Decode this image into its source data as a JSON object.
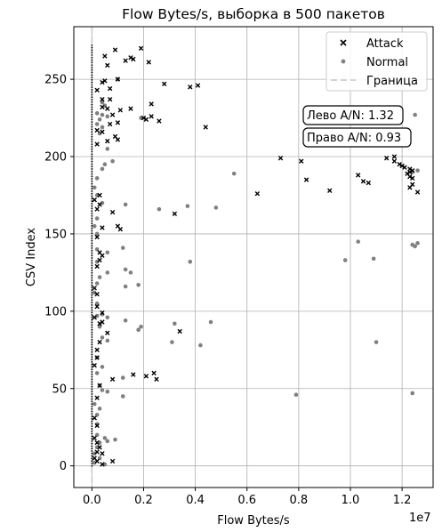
{
  "chart_data": {
    "type": "scatter",
    "title": "Flow Bytes/s, выборка в 500 пакетов",
    "xlabel": "Flow Bytes/s",
    "ylabel": "CSV Index",
    "x_scale_note": "1e7",
    "xlim": [
      -700000,
      13200000
    ],
    "ylim": [
      -14,
      284
    ],
    "xticks": [
      0,
      2000000,
      4000000,
      6000000,
      8000000,
      10000000,
      12000000
    ],
    "xtick_labels": [
      "0.0",
      "0.2",
      "0.4",
      "0.6",
      "0.8",
      "1.0",
      "1.2"
    ],
    "yticks": [
      0,
      50,
      100,
      150,
      200,
      250
    ],
    "ytick_labels": [
      "0",
      "50",
      "100",
      "150",
      "200",
      "250"
    ],
    "grid": true,
    "legend_position": "top-right",
    "boundary_x": 0,
    "annotations": [
      {
        "text": "Лево A/N: 1.32",
        "x": 10600000,
        "y": 227
      },
      {
        "text": "Право A/N: 0.93",
        "x": 10600000,
        "y": 212
      }
    ],
    "series": [
      {
        "name": "Attack",
        "marker": "x",
        "color": "#000000",
        "points": [
          [
            900000,
            269
          ],
          [
            1900000,
            270
          ],
          [
            500000,
            265
          ],
          [
            1500000,
            264
          ],
          [
            1600000,
            263
          ],
          [
            1300000,
            262
          ],
          [
            2200000,
            261
          ],
          [
            600000,
            259
          ],
          [
            1000000,
            250
          ],
          [
            500000,
            249
          ],
          [
            400000,
            248
          ],
          [
            2800000,
            247
          ],
          [
            3800000,
            245
          ],
          [
            4100000,
            246
          ],
          [
            700000,
            244
          ],
          [
            200000,
            243
          ],
          [
            400000,
            237
          ],
          [
            700000,
            237
          ],
          [
            2300000,
            234
          ],
          [
            400000,
            232
          ],
          [
            600000,
            231
          ],
          [
            1500000,
            231
          ],
          [
            1100000,
            230
          ],
          [
            800000,
            227
          ],
          [
            2000000,
            225
          ],
          [
            2100000,
            224
          ],
          [
            2300000,
            226
          ],
          [
            2600000,
            223
          ],
          [
            1000000,
            222
          ],
          [
            700000,
            221
          ],
          [
            4400000,
            219
          ],
          [
            200000,
            217
          ],
          [
            400000,
            216
          ],
          [
            900000,
            213
          ],
          [
            1000000,
            211
          ],
          [
            600000,
            210
          ],
          [
            200000,
            208
          ],
          [
            11700000,
            200
          ],
          [
            11400000,
            199
          ],
          [
            7300000,
            199
          ],
          [
            11700000,
            197
          ],
          [
            8100000,
            197
          ],
          [
            11900000,
            195
          ],
          [
            12000000,
            194
          ],
          [
            12100000,
            193
          ],
          [
            12300000,
            192
          ],
          [
            12400000,
            191
          ],
          [
            12300000,
            190
          ],
          [
            12200000,
            189
          ],
          [
            10300000,
            188
          ],
          [
            12300000,
            187
          ],
          [
            12400000,
            186
          ],
          [
            10500000,
            184
          ],
          [
            10700000,
            183
          ],
          [
            8300000,
            185
          ],
          [
            12400000,
            182
          ],
          [
            12300000,
            180
          ],
          [
            12600000,
            177
          ],
          [
            9200000,
            178
          ],
          [
            6400000,
            176
          ],
          [
            300000,
            175
          ],
          [
            100000,
            172
          ],
          [
            300000,
            169
          ],
          [
            200000,
            166
          ],
          [
            800000,
            164
          ],
          [
            3200000,
            163
          ],
          [
            1000000,
            155
          ],
          [
            1100000,
            153
          ],
          [
            400000,
            154
          ],
          [
            200000,
            148
          ],
          [
            300000,
            138
          ],
          [
            400000,
            136
          ],
          [
            300000,
            133
          ],
          [
            200000,
            129
          ],
          [
            100000,
            115
          ],
          [
            200000,
            111
          ],
          [
            200000,
            103
          ],
          [
            400000,
            99
          ],
          [
            100000,
            96
          ],
          [
            400000,
            93
          ],
          [
            300000,
            92
          ],
          [
            3400000,
            87
          ],
          [
            600000,
            86
          ],
          [
            300000,
            80
          ],
          [
            200000,
            75
          ],
          [
            200000,
            70
          ],
          [
            100000,
            65
          ],
          [
            1600000,
            59
          ],
          [
            2400000,
            60
          ],
          [
            2100000,
            58
          ],
          [
            2500000,
            56
          ],
          [
            800000,
            56
          ],
          [
            300000,
            52
          ],
          [
            200000,
            44
          ],
          [
            100000,
            31
          ],
          [
            200000,
            26
          ],
          [
            100000,
            18
          ],
          [
            200000,
            15
          ],
          [
            300000,
            12
          ],
          [
            200000,
            9
          ],
          [
            400000,
            8
          ],
          [
            100000,
            5
          ],
          [
            200000,
            3
          ],
          [
            800000,
            3
          ],
          [
            400000,
            1
          ]
        ]
      },
      {
        "name": "Normal",
        "marker": "o",
        "color": "#808080",
        "points": [
          [
            1000000,
            250
          ],
          [
            400000,
            235
          ],
          [
            500000,
            233
          ],
          [
            200000,
            228
          ],
          [
            400000,
            227
          ],
          [
            600000,
            226
          ],
          [
            300000,
            224
          ],
          [
            1900000,
            225
          ],
          [
            200000,
            221
          ],
          [
            400000,
            219
          ],
          [
            300000,
            215
          ],
          [
            12500000,
            227
          ],
          [
            600000,
            205
          ],
          [
            800000,
            197
          ],
          [
            500000,
            195
          ],
          [
            400000,
            192
          ],
          [
            12600000,
            191
          ],
          [
            12400000,
            190
          ],
          [
            5500000,
            189
          ],
          [
            200000,
            186
          ],
          [
            100000,
            180
          ],
          [
            200000,
            175
          ],
          [
            400000,
            170
          ],
          [
            1300000,
            169
          ],
          [
            3700000,
            168
          ],
          [
            4800000,
            167
          ],
          [
            2600000,
            166
          ],
          [
            200000,
            160
          ],
          [
            100000,
            155
          ],
          [
            200000,
            150
          ],
          [
            10300000,
            145
          ],
          [
            12600000,
            144
          ],
          [
            12400000,
            143
          ],
          [
            12500000,
            142
          ],
          [
            1200000,
            141
          ],
          [
            600000,
            138
          ],
          [
            200000,
            140
          ],
          [
            10900000,
            134
          ],
          [
            9800000,
            133
          ],
          [
            3800000,
            132
          ],
          [
            200000,
            132
          ],
          [
            1300000,
            127
          ],
          [
            1500000,
            125
          ],
          [
            600000,
            125
          ],
          [
            300000,
            122
          ],
          [
            1800000,
            117
          ],
          [
            1300000,
            116
          ],
          [
            200000,
            118
          ],
          [
            100000,
            112
          ],
          [
            200000,
            105
          ],
          [
            400000,
            98
          ],
          [
            200000,
            97
          ],
          [
            600000,
            96
          ],
          [
            1300000,
            94
          ],
          [
            300000,
            90
          ],
          [
            1900000,
            90
          ],
          [
            3200000,
            92
          ],
          [
            4600000,
            93
          ],
          [
            1800000,
            88
          ],
          [
            400000,
            83
          ],
          [
            600000,
            81
          ],
          [
            3100000,
            80
          ],
          [
            11000000,
            80
          ],
          [
            4200000,
            78
          ],
          [
            200000,
            70
          ],
          [
            400000,
            64
          ],
          [
            200000,
            60
          ],
          [
            1200000,
            57
          ],
          [
            300000,
            52
          ],
          [
            400000,
            49
          ],
          [
            600000,
            48
          ],
          [
            7900000,
            46
          ],
          [
            12400000,
            47
          ],
          [
            1200000,
            45
          ],
          [
            100000,
            40
          ],
          [
            300000,
            37
          ],
          [
            200000,
            33
          ],
          [
            200000,
            27
          ],
          [
            500000,
            18
          ],
          [
            900000,
            17
          ],
          [
            600000,
            16
          ],
          [
            300000,
            15
          ],
          [
            200000,
            12
          ],
          [
            100000,
            8
          ],
          [
            300000,
            5
          ],
          [
            100000,
            2
          ],
          [
            500000,
            1
          ],
          [
            200000,
            20
          ]
        ]
      },
      {
        "name": "Граница",
        "marker": "line",
        "color": "#d3d3d3"
      }
    ]
  },
  "colors": {
    "attack": "#000000",
    "normal": "#808080",
    "boundary": "#d3d3d3",
    "grid": "#b0b0b0"
  }
}
